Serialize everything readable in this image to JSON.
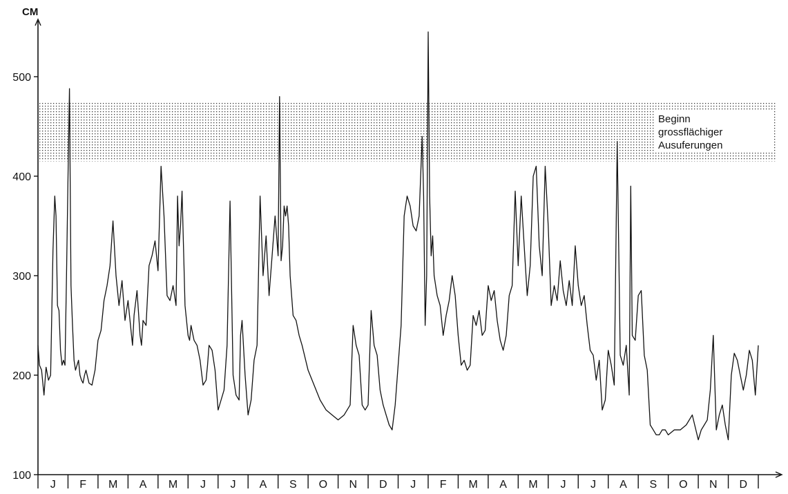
{
  "chart_data": {
    "type": "line",
    "title": "",
    "ylabel": "CM",
    "xlabel": "",
    "ylim": [
      100,
      550
    ],
    "yticks": [
      100,
      200,
      300,
      400,
      500
    ],
    "grid": false,
    "month_labels": [
      "J",
      "F",
      "M",
      "A",
      "M",
      "J",
      "J",
      "A",
      "S",
      "O",
      "N",
      "D",
      "J",
      "F",
      "M",
      "A",
      "M",
      "J",
      "J",
      "A",
      "S",
      "O",
      "N",
      "D"
    ],
    "x_unit": "month index (0 = start of first January, 24 = end of second December)",
    "band": {
      "from": 415,
      "to": 475,
      "pattern": "dotted",
      "label_lines": [
        "Beginn",
        "grossflächiger",
        "Ausuferungen"
      ]
    },
    "series": [
      {
        "x": [
          0,
          0.05,
          0.12,
          0.2,
          0.27,
          0.35,
          0.42,
          0.5,
          0.56,
          0.6,
          0.65,
          0.7,
          0.75,
          0.8,
          0.85,
          0.9,
          0.95,
          1.0,
          1.05,
          1.1,
          1.15,
          1.2,
          1.25,
          1.3,
          1.35,
          1.4,
          1.45,
          1.5,
          1.55,
          1.6,
          1.7,
          1.8,
          1.9,
          2.0,
          2.1,
          2.2,
          2.3,
          2.4,
          2.5,
          2.6,
          2.7,
          2.8,
          2.9,
          3.0,
          3.05,
          3.1,
          3.15,
          3.2,
          3.3,
          3.4,
          3.45,
          3.5,
          3.6,
          3.7,
          3.8,
          3.9,
          4.0,
          4.1,
          4.2,
          4.3,
          4.4,
          4.5,
          4.6,
          4.65,
          4.7,
          4.75,
          4.8,
          4.9,
          5.0,
          5.05,
          5.1,
          5.2,
          5.3,
          5.4,
          5.5,
          5.6,
          5.65,
          5.7,
          5.8,
          5.9,
          6.0,
          6.1,
          6.2,
          6.3,
          6.4,
          6.5,
          6.6,
          6.7,
          6.75,
          6.8,
          6.9,
          7.0,
          7.1,
          7.2,
          7.3,
          7.4,
          7.5,
          7.6,
          7.7,
          7.8,
          7.9,
          8.0,
          8.05,
          8.1,
          8.15,
          8.2,
          8.25,
          8.3,
          8.35,
          8.4,
          8.5,
          8.6,
          8.7,
          8.8,
          9.0,
          9.2,
          9.4,
          9.6,
          9.8,
          10.0,
          10.2,
          10.3,
          10.4,
          10.5,
          10.6,
          10.7,
          10.8,
          10.9,
          11.0,
          11.1,
          11.2,
          11.3,
          11.4,
          11.5,
          11.6,
          11.7,
          11.8,
          11.9,
          12.0,
          12.1,
          12.2,
          12.3,
          12.4,
          12.5,
          12.6,
          12.7,
          12.8,
          12.85,
          12.9,
          12.95,
          13.0,
          13.05,
          13.1,
          13.15,
          13.2,
          13.3,
          13.4,
          13.5,
          13.6,
          13.7,
          13.8,
          13.9,
          14.0,
          14.1,
          14.2,
          14.3,
          14.4,
          14.5,
          14.6,
          14.7,
          14.8,
          14.9,
          15.0,
          15.1,
          15.2,
          15.3,
          15.4,
          15.5,
          15.6,
          15.7,
          15.8,
          15.9,
          16.0,
          16.1,
          16.2,
          16.3,
          16.4,
          16.5,
          16.6,
          16.7,
          16.8,
          16.9,
          17.0,
          17.1,
          17.2,
          17.3,
          17.4,
          17.5,
          17.6,
          17.7,
          17.8,
          17.9,
          18.0,
          18.1,
          18.2,
          18.3,
          18.4,
          18.5,
          18.6,
          18.7,
          18.8,
          18.9,
          19.0,
          19.1,
          19.2,
          19.3,
          19.4,
          19.5,
          19.6,
          19.7,
          19.75,
          19.8,
          19.9,
          20.0,
          20.1,
          20.2,
          20.3,
          20.4,
          20.5,
          20.6,
          20.7,
          20.8,
          20.9,
          21.0,
          21.2,
          21.4,
          21.6,
          21.8,
          22.0,
          22.1,
          22.2,
          22.3,
          22.4,
          22.5,
          22.6,
          22.7,
          22.8,
          22.9,
          23.0,
          23.1,
          23.2,
          23.3,
          23.4,
          23.5,
          23.6,
          23.7,
          23.8,
          23.9,
          24.0
        ],
        "values": [
          230,
          210,
          205,
          180,
          208,
          195,
          200,
          325,
          380,
          360,
          270,
          265,
          225,
          210,
          215,
          210,
          300,
          400,
          488,
          290,
          250,
          215,
          205,
          210,
          215,
          200,
          195,
          192,
          200,
          205,
          192,
          190,
          205,
          235,
          245,
          275,
          290,
          310,
          355,
          300,
          270,
          295,
          255,
          275,
          260,
          245,
          230,
          260,
          285,
          240,
          230,
          255,
          250,
          310,
          320,
          335,
          305,
          410,
          360,
          280,
          275,
          290,
          270,
          380,
          330,
          350,
          385,
          270,
          240,
          235,
          250,
          235,
          230,
          215,
          190,
          195,
          210,
          230,
          225,
          205,
          165,
          175,
          185,
          230,
          375,
          200,
          180,
          175,
          240,
          255,
          200,
          160,
          175,
          215,
          230,
          380,
          300,
          340,
          280,
          320,
          360,
          320,
          480,
          315,
          330,
          370,
          360,
          370,
          350,
          300,
          260,
          255,
          240,
          230,
          205,
          190,
          175,
          165,
          160,
          155,
          160,
          165,
          170,
          250,
          230,
          220,
          170,
          165,
          170,
          265,
          230,
          220,
          185,
          170,
          160,
          150,
          145,
          170,
          210,
          250,
          360,
          380,
          370,
          350,
          345,
          360,
          440,
          380,
          250,
          300,
          545,
          380,
          320,
          340,
          300,
          280,
          270,
          240,
          260,
          275,
          300,
          280,
          240,
          210,
          215,
          205,
          210,
          260,
          250,
          265,
          240,
          245,
          290,
          275,
          285,
          255,
          235,
          225,
          240,
          280,
          290,
          385,
          310,
          380,
          330,
          280,
          310,
          400,
          410,
          330,
          300,
          410,
          350,
          270,
          290,
          275,
          315,
          285,
          270,
          295,
          270,
          330,
          290,
          270,
          280,
          250,
          225,
          220,
          195,
          215,
          165,
          175,
          225,
          210,
          190,
          435,
          220,
          210,
          230,
          180,
          390,
          240,
          235,
          280,
          285,
          220,
          205,
          150,
          145,
          140,
          140,
          145,
          145,
          140,
          145,
          145,
          150,
          160,
          135,
          145,
          150,
          155,
          185,
          240,
          145,
          160,
          170,
          150,
          135,
          200,
          222,
          215,
          200,
          185,
          200,
          225,
          215,
          180,
          230
        ]
      }
    ]
  }
}
